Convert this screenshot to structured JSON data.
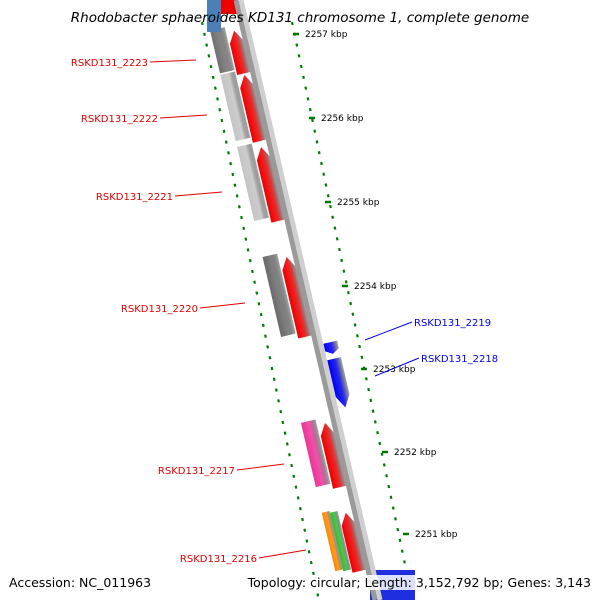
{
  "title": "Rhodobacter sphaeroides KD131 chromosome 1, complete genome",
  "footer": {
    "accession": "Accession: NC_011963",
    "summary": "Topology: circular; Length: 3,152,792 bp; Genes: 3,143"
  },
  "colors": {
    "backbone": "#9a9a9a",
    "tick": "#007a00",
    "forward_label": "#e00000",
    "reverse_label": "#0000e0"
  },
  "kbp_ticks": [
    {
      "label": "2257 kbp"
    },
    {
      "label": "2256 kbp"
    },
    {
      "label": "2255 kbp"
    },
    {
      "label": "2254 kbp"
    },
    {
      "label": "2253 kbp"
    },
    {
      "label": "2252 kbp"
    },
    {
      "label": "2251 kbp"
    }
  ],
  "genes": [
    {
      "name": "RSKD131_2223",
      "strand": "forward",
      "color": "#ee0000",
      "cog_color": "#707070"
    },
    {
      "name": "RSKD131_2222",
      "strand": "forward",
      "color": "#ee0000",
      "cog_color": "#c4c4c4"
    },
    {
      "name": "RSKD131_2221",
      "strand": "forward",
      "color": "#ee0000",
      "cog_color": "#c4c4c4"
    },
    {
      "name": "RSKD131_2220",
      "strand": "forward",
      "color": "#ee0000",
      "cog_color": "#6a6a6a"
    },
    {
      "name": "RSKD131_2219",
      "strand": "reverse",
      "color": "#0000ee"
    },
    {
      "name": "RSKD131_2218",
      "strand": "reverse",
      "color": "#0000ee"
    },
    {
      "name": "RSKD131_2217",
      "strand": "forward",
      "color": "#ee0000",
      "cog_color": "#ee3399"
    },
    {
      "name": "RSKD131_2216",
      "strand": "forward",
      "color": "#ee0000",
      "cog_colors": [
        "#ff8800",
        "#33bb33"
      ]
    }
  ]
}
